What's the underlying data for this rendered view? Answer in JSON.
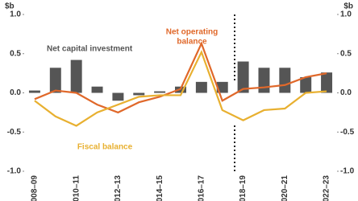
{
  "chart_data": {
    "type": "bar-line",
    "unit_left": "$b",
    "unit_right": "$b",
    "categories": [
      "2008–09",
      null,
      "2010–11",
      null,
      "2012–13",
      null,
      "2014–15",
      null,
      "2016–17",
      null,
      "2018–19",
      null,
      "2020–21",
      null,
      "2022–23"
    ],
    "series": [
      {
        "name": "Net capital investment",
        "type": "bar",
        "color": "#555555",
        "values": [
          0.03,
          0.32,
          0.42,
          0.08,
          -0.1,
          -0.03,
          0.02,
          0.08,
          0.14,
          0.14,
          0.4,
          0.32,
          0.32,
          0.2,
          0.26
        ]
      },
      {
        "name": "Net operating balance",
        "type": "line",
        "color": "#e0682a",
        "values": [
          -0.08,
          0.03,
          0.0,
          -0.15,
          -0.25,
          -0.12,
          -0.05,
          0.05,
          0.63,
          -0.1,
          0.05,
          0.07,
          0.1,
          0.2,
          0.25
        ]
      },
      {
        "name": "Fiscal balance",
        "type": "line",
        "color": "#e8b030",
        "values": [
          -0.1,
          -0.3,
          -0.42,
          -0.25,
          -0.15,
          -0.05,
          -0.03,
          -0.03,
          0.52,
          -0.22,
          -0.35,
          -0.22,
          -0.2,
          0.0,
          0.02
        ]
      }
    ],
    "annotations": [
      {
        "lines": [
          "Net capital investment"
        ],
        "color": "#555555"
      },
      {
        "lines": [
          "Net operating",
          "balance"
        ],
        "color": "#e0682a"
      },
      {
        "lines": [
          "Fiscal balance"
        ],
        "color": "#e8b030"
      }
    ],
    "ylim": [
      -1,
      1
    ],
    "yticks": [
      {
        "value": 1,
        "label": "1.0"
      },
      {
        "value": 0.5,
        "label": "0.5"
      },
      {
        "value": 0,
        "label": "0.0"
      },
      {
        "value": -0.5,
        "label": "-0.5"
      },
      {
        "value": -1,
        "label": "-1.0"
      }
    ],
    "y2lim": [
      -1,
      1
    ],
    "y2ticks": [
      {
        "value": 1,
        "label": "1.0"
      },
      {
        "value": 0.5,
        "label": "0.5"
      },
      {
        "value": 0,
        "label": "0.0"
      },
      {
        "value": -0.5,
        "label": "-0.5"
      },
      {
        "value": -1,
        "label": "-1.0"
      }
    ]
  }
}
